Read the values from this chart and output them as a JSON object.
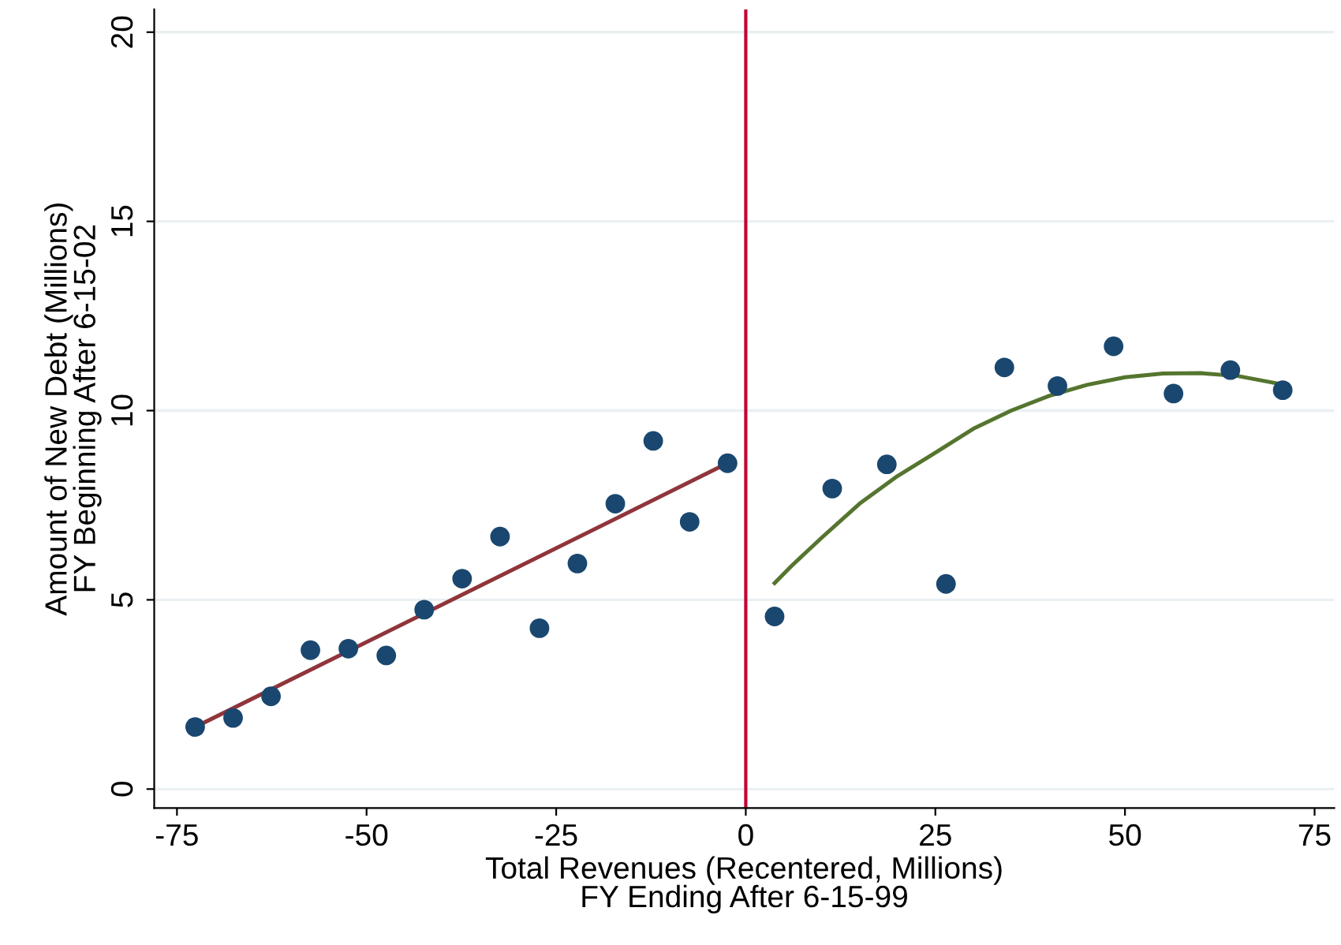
{
  "chart_data": {
    "type": "scatter",
    "xlabel": "Total Revenues (Recentered, Millions)\nFY Ending After 6-15-99",
    "ylabel": "Amount of New Debt (Millions)\nFY Beginning After 6-15-02",
    "xlim": [
      -78,
      77.6
    ],
    "ylim": [
      -0.5,
      20.6
    ],
    "xticks": [
      -75,
      -50,
      -25,
      0,
      25,
      50,
      75
    ],
    "yticks": [
      0,
      5,
      10,
      15,
      20
    ],
    "grid": "y",
    "legend": false,
    "series": [
      {
        "marker": "circle",
        "color": "#1a476f",
        "x": [
          -72.6,
          -67.6,
          -62.6,
          -57.4,
          -52.4,
          -47.4,
          -42.4,
          -37.4,
          -32.4,
          -27.2,
          -22.2,
          -17.2,
          -12.2,
          -7.4,
          -2.4
        ],
        "values": [
          1.64,
          1.88,
          2.45,
          3.67,
          3.71,
          3.53,
          4.74,
          5.56,
          6.67,
          4.25,
          5.96,
          7.54,
          9.2,
          7.06,
          8.61
        ]
      },
      {
        "marker": "circle",
        "color": "#1a476f",
        "x": [
          3.8,
          11.4,
          18.6,
          26.4,
          34.1,
          41.1,
          48.5,
          56.4,
          63.9,
          70.8
        ],
        "values": [
          4.56,
          7.94,
          8.58,
          5.42,
          11.14,
          10.65,
          11.7,
          10.45,
          11.07,
          10.54
        ]
      },
      {
        "type": "line",
        "marker": "none",
        "color": "#90353b",
        "x": [
          -72.6,
          -2.4
        ],
        "values": [
          1.64,
          8.61
        ]
      },
      {
        "type": "line",
        "marker": "none",
        "color": "#55752f",
        "x": [
          3.8,
          6,
          10,
          15,
          20,
          25,
          30,
          35,
          40,
          45,
          50,
          55,
          60,
          65,
          70.8
        ],
        "values": [
          5.44,
          5.89,
          6.64,
          7.54,
          8.27,
          8.89,
          9.52,
          10.0,
          10.39,
          10.68,
          10.88,
          10.98,
          10.99,
          10.91,
          10.69
        ]
      }
    ],
    "ref_lines": [
      {
        "axis": "x",
        "value": 0,
        "label": null,
        "color": "#c10534"
      }
    ]
  }
}
